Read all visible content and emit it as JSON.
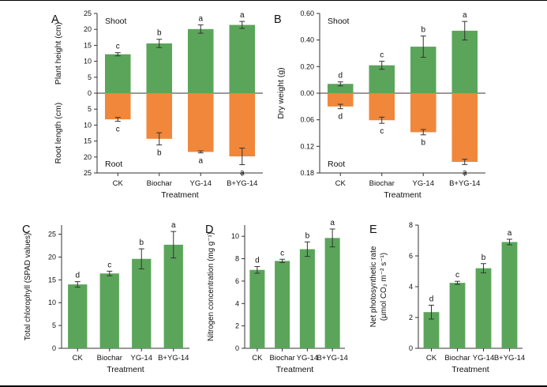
{
  "figure": {
    "background": "#ffffff",
    "border_color": "#000000",
    "axis_color": "#333333",
    "bar_green": "#5ba55b",
    "bar_orange": "#f0873b",
    "panel_letters": [
      "A",
      "B",
      "C",
      "D",
      "E"
    ]
  },
  "chart_data": [
    {
      "id": "A",
      "panel_label": "A",
      "type": "bar-diverging",
      "categories": [
        "CK",
        "Biochar",
        "YG-14",
        "B+YG-14"
      ],
      "xlabel": "Treatment",
      "up": {
        "section_label": "Shoot",
        "axis_label": "Plant height (cm)",
        "tick_values": [
          0,
          5,
          10,
          15,
          20,
          25
        ],
        "tick_labels": [
          "0",
          "5",
          "10",
          "15",
          "20",
          "25"
        ],
        "axis_max": 25,
        "values": [
          12.2,
          15.6,
          20.1,
          21.4
        ],
        "errors": [
          0.5,
          1.3,
          1.3,
          1.1
        ],
        "sig_letters": [
          "c",
          "b",
          "a",
          "a"
        ],
        "color": "#5ba55b"
      },
      "down": {
        "section_label": "Root",
        "axis_label": "Root length (cm)",
        "tick_values": [
          5,
          10,
          15,
          20,
          25
        ],
        "tick_labels": [
          "5",
          "10",
          "15",
          "20",
          "25"
        ],
        "axis_max": 25,
        "values": [
          8.2,
          14.3,
          18.4,
          19.8
        ],
        "errors": [
          0.6,
          1.9,
          0.3,
          2.6
        ],
        "sig_letters": [
          "c",
          "b",
          "a",
          "a"
        ],
        "color": "#f0873b"
      }
    },
    {
      "id": "B",
      "panel_label": "B",
      "type": "bar-diverging",
      "categories": [
        "CK",
        "Biochar",
        "YG-14",
        "B+YG-14"
      ],
      "xlabel": "Treatment",
      "shared_axis_label": "Dry weight (g)",
      "up": {
        "section_label": "Shoot",
        "axis_label": null,
        "tick_values": [
          0,
          0.2,
          0.4,
          0.6
        ],
        "tick_labels": [
          "0.00",
          "0.20",
          "0.40",
          "0.60"
        ],
        "axis_max": 0.6,
        "values": [
          0.07,
          0.21,
          0.35,
          0.47
        ],
        "errors": [
          0.015,
          0.03,
          0.08,
          0.07
        ],
        "sig_letters": [
          "d",
          "c",
          "b",
          "a"
        ],
        "color": "#5ba55b"
      },
      "down": {
        "section_label": "Root",
        "axis_label": null,
        "tick_values": [
          0.06,
          0.12,
          0.18
        ],
        "tick_labels": [
          "0.06",
          "0.12",
          "0.18"
        ],
        "axis_max": 0.18,
        "values": [
          0.03,
          0.061,
          0.088,
          0.155
        ],
        "errors": [
          0.005,
          0.007,
          0.006,
          0.006
        ],
        "sig_letters": [
          "d",
          "c",
          "b",
          "a"
        ],
        "color": "#f0873b"
      }
    },
    {
      "id": "C",
      "panel_label": "C",
      "type": "bar",
      "categories": [
        "CK",
        "Biochar",
        "YG-14",
        "B+YG-14"
      ],
      "xlabel": "Treatment",
      "ylabel_lines": [
        "Total chlorophyll (SPAD values)"
      ],
      "tick_values": [
        0,
        5,
        10,
        15,
        20,
        25
      ],
      "tick_labels": [
        "0",
        "5",
        "10",
        "15",
        "20",
        "25"
      ],
      "axis_max": 27,
      "values": [
        14.0,
        16.4,
        19.6,
        22.7
      ],
      "errors": [
        0.6,
        0.5,
        2.2,
        2.9
      ],
      "sig_letters": [
        "d",
        "c",
        "b",
        "a"
      ],
      "color": "#5ba55b"
    },
    {
      "id": "D",
      "panel_label": "D",
      "type": "bar",
      "categories": [
        "CK",
        "Biochar",
        "YG-14",
        "B+YG-14"
      ],
      "xlabel": "Treatment",
      "ylabel_lines": [
        "Nitrogen concentration (mg g⁻¹)"
      ],
      "tick_values": [
        0,
        2,
        4,
        6,
        8,
        10
      ],
      "tick_labels": [
        "0",
        "2",
        "4",
        "6",
        "8",
        "10"
      ],
      "axis_max": 11,
      "values": [
        7.0,
        7.8,
        8.85,
        9.85
      ],
      "errors": [
        0.3,
        0.15,
        0.65,
        0.8
      ],
      "sig_letters": [
        "d",
        "c",
        "b",
        "a"
      ],
      "color": "#5ba55b"
    },
    {
      "id": "E",
      "panel_label": "E",
      "type": "bar",
      "categories": [
        "CK",
        "Biochar",
        "YG-14",
        "B+YG-14"
      ],
      "xlabel": "Treatment",
      "ylabel_lines": [
        "Net photosynthetic rate",
        "(μmol CO₂ m⁻² s⁻¹)"
      ],
      "tick_values": [
        0,
        2,
        4,
        6,
        8
      ],
      "tick_labels": [
        "0",
        "2",
        "4",
        "6",
        "8"
      ],
      "axis_max": 8,
      "values": [
        2.35,
        4.25,
        5.2,
        6.9
      ],
      "errors": [
        0.45,
        0.1,
        0.3,
        0.18
      ],
      "sig_letters": [
        "d",
        "c",
        "b",
        "a"
      ],
      "color": "#5ba55b"
    }
  ]
}
